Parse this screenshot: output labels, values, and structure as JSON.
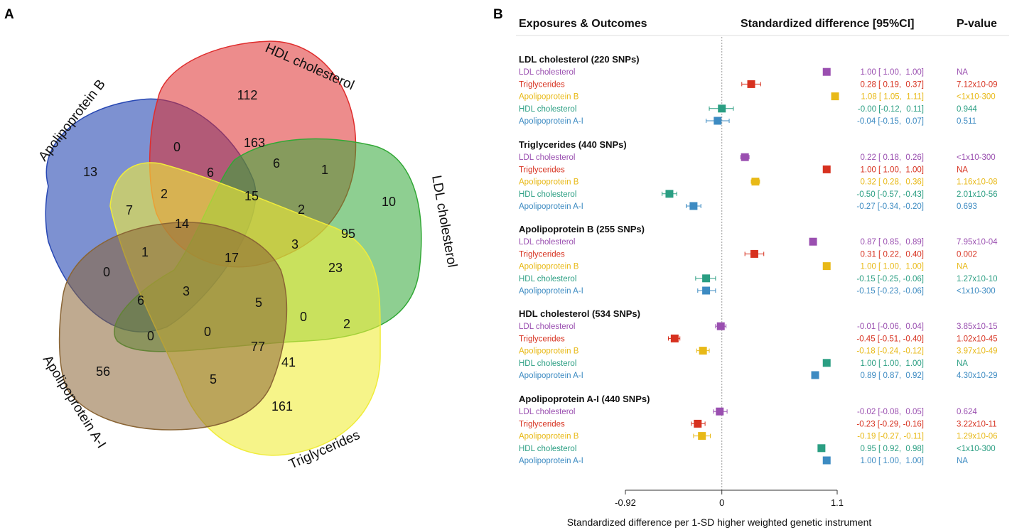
{
  "panels": {
    "a": "A",
    "b": "B"
  },
  "colors": {
    "LDL cholesterol": "#9a4fb0",
    "Triglycerides": "#d7311f",
    "Apolipoprotein B": "#e8b917",
    "HDL cholesterol": "#2a9e82",
    "Apolipoprotein A-I": "#3d8bc2"
  },
  "venn": {
    "sets": [
      {
        "name": "Apolipoprotein B",
        "fill": "#2747b3"
      },
      {
        "name": "HDL cholesterol",
        "fill": "#df2d2d"
      },
      {
        "name": "LDL cholesterol",
        "fill": "#32a836"
      },
      {
        "name": "Triglycerides",
        "fill": "#f0ec3a"
      },
      {
        "name": "Apolipoprotein A-I",
        "fill": "#8a6535"
      }
    ],
    "counts": [
      "112",
      "163",
      "0",
      "13",
      "6",
      "6",
      "1",
      "10",
      "2",
      "7",
      "15",
      "2",
      "95",
      "14",
      "1",
      "17",
      "3",
      "23",
      "0",
      "6",
      "3",
      "5",
      "0",
      "2",
      "0",
      "0",
      "77",
      "41",
      "56",
      "5",
      "161"
    ]
  },
  "chart_data": {
    "type": "forest",
    "columns": {
      "label": "Exposures & Outcomes",
      "estimate": "Standardized difference [95%CI]",
      "p": "P-value"
    },
    "xlabel": "Standardized difference per 1-SD higher weighted genetic instrument",
    "xticks": [
      "-0.92",
      "0",
      "1.1"
    ],
    "xlim": [
      -0.92,
      1.1
    ],
    "reference_line": 0,
    "groups": [
      {
        "title": "LDL cholesterol (220 SNPs)",
        "rows": [
          {
            "outcome": "LDL cholesterol",
            "est": 1.0,
            "lo": 1.0,
            "hi": 1.0,
            "ci_text": "1.00 [ 1.00,  1.00]",
            "p": "NA"
          },
          {
            "outcome": "Triglycerides",
            "est": 0.28,
            "lo": 0.19,
            "hi": 0.37,
            "ci_text": "0.28 [ 0.19,  0.37]",
            "p": "7.12x10-09"
          },
          {
            "outcome": "Apolipoprotein B",
            "est": 1.08,
            "lo": 1.05,
            "hi": 1.11,
            "ci_text": "1.08 [ 1.05,  1.11]",
            "p": "<1x10-300"
          },
          {
            "outcome": "HDL cholesterol",
            "est": -0.0,
            "lo": -0.12,
            "hi": 0.11,
            "ci_text": "-0.00 [-0.12,  0.11]",
            "p": "0.944"
          },
          {
            "outcome": "Apolipoprotein A-I",
            "est": -0.04,
            "lo": -0.15,
            "hi": 0.07,
            "ci_text": "-0.04 [-0.15,  0.07]",
            "p": "0.511"
          }
        ]
      },
      {
        "title": "Triglycerides (440 SNPs)",
        "rows": [
          {
            "outcome": "LDL cholesterol",
            "est": 0.22,
            "lo": 0.18,
            "hi": 0.26,
            "ci_text": "0.22 [ 0.18,  0.26]",
            "p": "<1x10-300"
          },
          {
            "outcome": "Triglycerides",
            "est": 1.0,
            "lo": 1.0,
            "hi": 1.0,
            "ci_text": "1.00 [ 1.00,  1.00]",
            "p": "NA"
          },
          {
            "outcome": "Apolipoprotein B",
            "est": 0.32,
            "lo": 0.28,
            "hi": 0.36,
            "ci_text": "0.32 [ 0.28,  0.36]",
            "p": "1.16x10-08"
          },
          {
            "outcome": "HDL cholesterol",
            "est": -0.5,
            "lo": -0.57,
            "hi": -0.43,
            "ci_text": "-0.50 [-0.57, -0.43]",
            "p": "2.01x10-56"
          },
          {
            "outcome": "Apolipoprotein A-I",
            "est": -0.27,
            "lo": -0.34,
            "hi": -0.2,
            "ci_text": "-0.27 [-0.34, -0.20]",
            "p": "0.693"
          }
        ]
      },
      {
        "title": "Apolipoprotein B (255 SNPs)",
        "rows": [
          {
            "outcome": "LDL cholesterol",
            "est": 0.87,
            "lo": 0.85,
            "hi": 0.89,
            "ci_text": "0.87 [ 0.85,  0.89]",
            "p": "7.95x10-04"
          },
          {
            "outcome": "Triglycerides",
            "est": 0.31,
            "lo": 0.22,
            "hi": 0.4,
            "ci_text": "0.31 [ 0.22,  0.40]",
            "p": "0.002"
          },
          {
            "outcome": "Apolipoprotein B",
            "est": 1.0,
            "lo": 1.0,
            "hi": 1.0,
            "ci_text": "1.00 [ 1.00,  1.00]",
            "p": "NA"
          },
          {
            "outcome": "HDL cholesterol",
            "est": -0.15,
            "lo": -0.25,
            "hi": -0.06,
            "ci_text": "-0.15 [-0.25, -0.06]",
            "p": "1.27x10-10"
          },
          {
            "outcome": "Apolipoprotein A-I",
            "est": -0.15,
            "lo": -0.23,
            "hi": -0.06,
            "ci_text": "-0.15 [-0.23, -0.06]",
            "p": "<1x10-300"
          }
        ]
      },
      {
        "title": "HDL cholesterol  (534 SNPs)",
        "rows": [
          {
            "outcome": "LDL cholesterol",
            "est": -0.01,
            "lo": -0.06,
            "hi": 0.04,
            "ci_text": "-0.01 [-0.06,  0.04]",
            "p": "3.85x10-15"
          },
          {
            "outcome": "Triglycerides",
            "est": -0.45,
            "lo": -0.51,
            "hi": -0.4,
            "ci_text": "-0.45 [-0.51, -0.40]",
            "p": "1.02x10-45"
          },
          {
            "outcome": "Apolipoprotein B",
            "est": -0.18,
            "lo": -0.24,
            "hi": -0.12,
            "ci_text": "-0.18 [-0.24, -0.12]",
            "p": "3.97x10-49"
          },
          {
            "outcome": "HDL cholesterol",
            "est": 1.0,
            "lo": 1.0,
            "hi": 1.0,
            "ci_text": "1.00 [ 1.00,  1.00]",
            "p": "NA"
          },
          {
            "outcome": "Apolipoprotein A-I",
            "est": 0.89,
            "lo": 0.87,
            "hi": 0.92,
            "ci_text": "0.89 [ 0.87,  0.92]",
            "p": "4.30x10-29"
          }
        ]
      },
      {
        "title": "Apolipoprotein A-I (440 SNPs)",
        "rows": [
          {
            "outcome": "LDL cholesterol",
            "est": -0.02,
            "lo": -0.08,
            "hi": 0.05,
            "ci_text": "-0.02 [-0.08,  0.05]",
            "p": "0.624"
          },
          {
            "outcome": "Triglycerides",
            "est": -0.23,
            "lo": -0.29,
            "hi": -0.16,
            "ci_text": "-0.23 [-0.29, -0.16]",
            "p": "3.22x10-11"
          },
          {
            "outcome": "Apolipoprotein B",
            "est": -0.19,
            "lo": -0.27,
            "hi": -0.11,
            "ci_text": "-0.19 [-0.27, -0.11]",
            "p": "1.29x10-06"
          },
          {
            "outcome": "HDL cholesterol",
            "est": 0.95,
            "lo": 0.92,
            "hi": 0.98,
            "ci_text": "0.95 [ 0.92,  0.98]",
            "p": "<1x10-300"
          },
          {
            "outcome": "Apolipoprotein A-I",
            "est": 1.0,
            "lo": 1.0,
            "hi": 1.0,
            "ci_text": "1.00 [ 1.00,  1.00]",
            "p": "NA"
          }
        ]
      }
    ]
  }
}
